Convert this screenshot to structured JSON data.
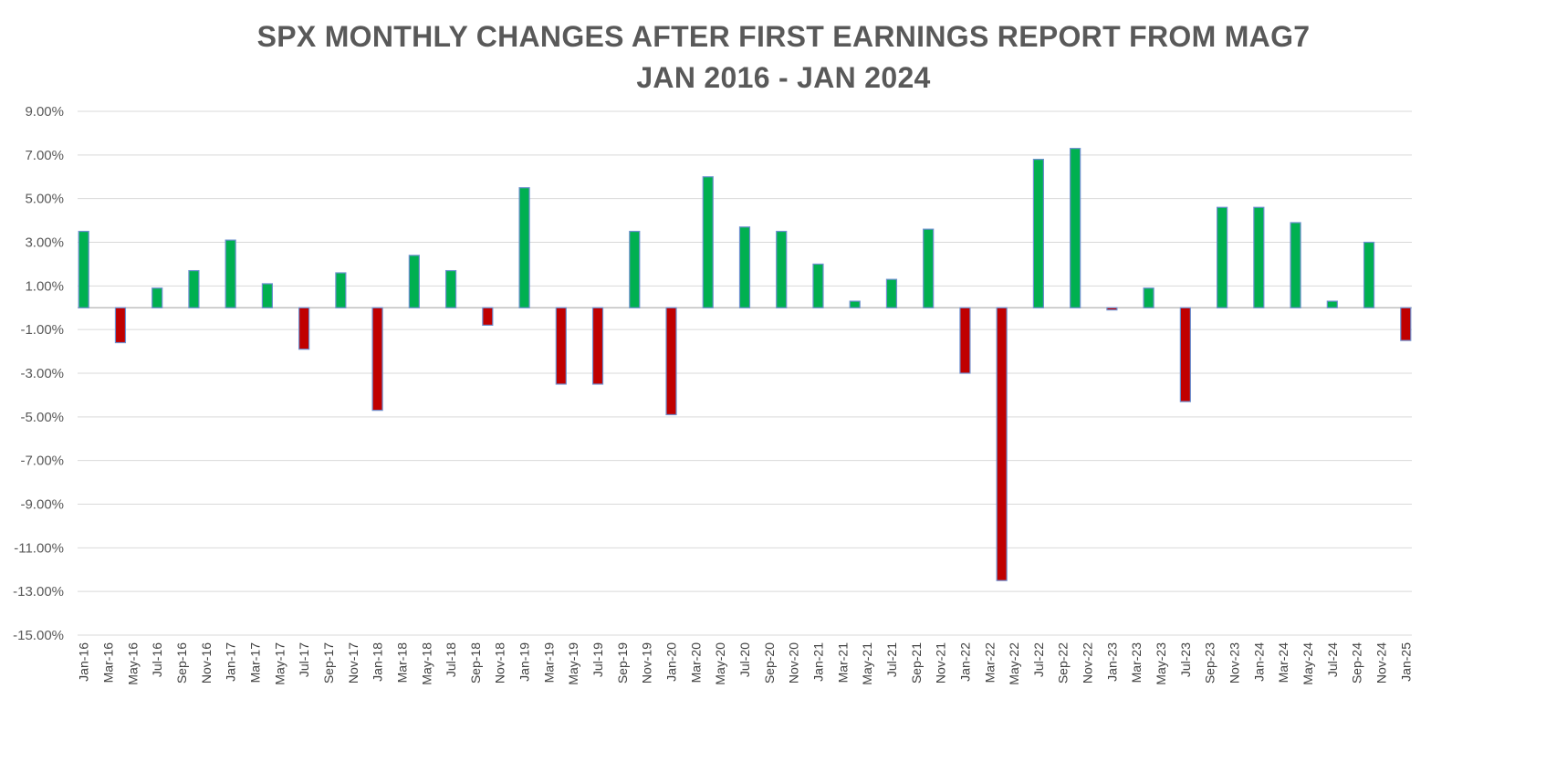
{
  "chart_data": {
    "type": "bar",
    "title": "SPX MONTHLY CHANGES AFTER FIRST EARNINGS REPORT FROM MAG7",
    "subtitle": "JAN 2016 - JAN 2024",
    "xlabel": "",
    "ylabel": "",
    "ylim": [
      -15,
      9
    ],
    "yticks": [
      9,
      7,
      5,
      3,
      1,
      -1,
      -3,
      -5,
      -7,
      -9,
      -11,
      -13,
      -15
    ],
    "ytick_labels": [
      "9.00%",
      "7.00%",
      "5.00%",
      "3.00%",
      "1.00%",
      "-1.00%",
      "-3.00%",
      "-5.00%",
      "-7.00%",
      "-9.00%",
      "-11.00%",
      "-13.00%",
      "-15.00%"
    ],
    "grid": true,
    "legend": "none",
    "colors": {
      "positive": "#00b050",
      "negative": "#c00000",
      "bar_border": "#6d8fcf",
      "gridline": "#d9d9d9",
      "axis": "#bfbfbf"
    },
    "categories": [
      "Jan-16",
      "Mar-16",
      "May-16",
      "Jul-16",
      "Sep-16",
      "Nov-16",
      "Jan-17",
      "Mar-17",
      "May-17",
      "Jul-17",
      "Sep-17",
      "Nov-17",
      "Jan-18",
      "Mar-18",
      "May-18",
      "Jul-18",
      "Sep-18",
      "Nov-18",
      "Jan-19",
      "Mar-19",
      "May-19",
      "Jul-19",
      "Sep-19",
      "Nov-19",
      "Jan-20",
      "Mar-20",
      "May-20",
      "Jul-20",
      "Sep-20",
      "Nov-20",
      "Jan-21",
      "Mar-21",
      "May-21",
      "Jul-21",
      "Sep-21",
      "Nov-21",
      "Jan-22",
      "Mar-22",
      "May-22",
      "Jul-22",
      "Sep-22",
      "Nov-22",
      "Jan-23",
      "Mar-23",
      "May-23",
      "Jul-23",
      "Sep-23",
      "Nov-23",
      "Jan-24",
      "Mar-24",
      "May-24",
      "Jul-24",
      "Sep-24",
      "Nov-24",
      "Jan-25"
    ],
    "bars": [
      {
        "month": "Jan-16",
        "value": 3.5
      },
      {
        "month": "Apr-16",
        "value": -1.6
      },
      {
        "month": "Jul-16",
        "value": 0.9
      },
      {
        "month": "Oct-16",
        "value": 1.7
      },
      {
        "month": "Jan-17",
        "value": 3.1
      },
      {
        "month": "Apr-17",
        "value": 1.1
      },
      {
        "month": "Jul-17",
        "value": -1.9
      },
      {
        "month": "Oct-17",
        "value": 1.6
      },
      {
        "month": "Jan-18",
        "value": -4.7
      },
      {
        "month": "Apr-18",
        "value": 2.4
      },
      {
        "month": "Jul-18",
        "value": 1.7
      },
      {
        "month": "Oct-18",
        "value": -0.8
      },
      {
        "month": "Jan-19",
        "value": 5.5
      },
      {
        "month": "Apr-19",
        "value": -3.5
      },
      {
        "month": "Jul-19",
        "value": -3.5
      },
      {
        "month": "Oct-19",
        "value": 3.5
      },
      {
        "month": "Jan-20",
        "value": -4.9
      },
      {
        "month": "Apr-20",
        "value": 6.0
      },
      {
        "month": "Jul-20",
        "value": 3.7
      },
      {
        "month": "Oct-20",
        "value": 3.5
      },
      {
        "month": "Jan-21",
        "value": 2.0
      },
      {
        "month": "Apr-21",
        "value": 0.3
      },
      {
        "month": "Jul-21",
        "value": 1.3
      },
      {
        "month": "Oct-21",
        "value": 3.6
      },
      {
        "month": "Jan-22",
        "value": -3.0
      },
      {
        "month": "Apr-22",
        "value": -12.5
      },
      {
        "month": "Jul-22",
        "value": 6.8
      },
      {
        "month": "Oct-22",
        "value": 7.3
      },
      {
        "month": "Jan-23",
        "value": -0.1
      },
      {
        "month": "Apr-23",
        "value": 0.9
      },
      {
        "month": "Jul-23",
        "value": -4.3
      },
      {
        "month": "Oct-23",
        "value": 4.6
      },
      {
        "month": "Jan-24",
        "value": 4.6
      },
      {
        "month": "Apr-24",
        "value": 3.9
      },
      {
        "month": "Jul-24",
        "value": 0.3
      },
      {
        "month": "Oct-24",
        "value": 3.0
      },
      {
        "month": "Jan-25",
        "value": -1.5
      }
    ]
  }
}
